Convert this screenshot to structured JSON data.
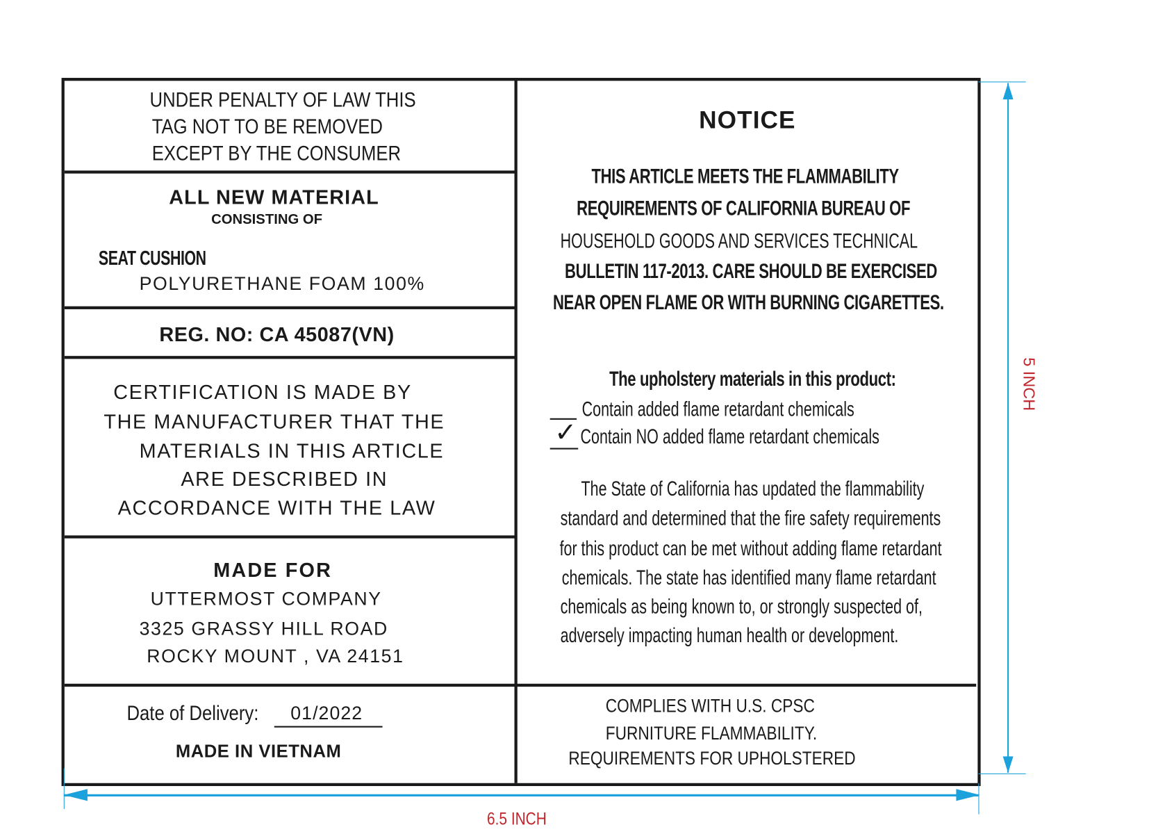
{
  "left": {
    "tag_notice": [
      "UNDER PENALTY OF LAW THIS",
      "TAG NOT TO BE REMOVED",
      "EXCEPT BY THE CONSUMER"
    ],
    "material_heading": "ALL NEW MATERIAL",
    "consisting_of": "CONSISTING OF",
    "component": "SEAT CUSHION",
    "component_material": "POLYURETHANE FOAM 100%",
    "reg_no": "REG. NO:  CA 45087(VN)",
    "certification": [
      "CERTIFICATION IS MADE BY",
      "THE MANUFACTURER THAT THE",
      "MATERIALS IN THIS ARTICLE",
      "ARE DESCRIBED IN",
      "ACCORDANCE WITH THE LAW"
    ],
    "made_for_heading": "MADE FOR",
    "made_for": [
      "UTTERMOST COMPANY",
      "3325 GRASSY HILL ROAD",
      "ROCKY MOUNT , VA 24151"
    ],
    "date_label": "Date of Delivery:",
    "date_value": "01/2022",
    "origin": "MADE IN VIETNAM"
  },
  "right": {
    "title": "NOTICE",
    "flammability": [
      "THIS ARTICLE MEETS THE FLAMMABILITY",
      "REQUIREMENTS OF CALIFORNIA BUREAU OF",
      "HOUSEHOLD GOODS AND SERVICES TECHNICAL",
      "BULLETIN 117-2013. CARE SHOULD BE EXERCISED",
      "NEAR OPEN FLAME OR WITH BURNING CIGARETTES."
    ],
    "upholstery_heading": "The upholstery materials in this product:",
    "options": [
      {
        "label": "Contain added flame retardant chemicals",
        "checked": false
      },
      {
        "label": "Contain NO added flame retardant chemicals",
        "checked": true
      }
    ],
    "state_paragraph": [
      "The State of California has updated the flammability",
      "standard and determined that the fire safety requirements",
      "for this product can be met without adding flame retardant",
      "chemicals. The state has identified many flame retardant",
      "chemicals as being known to, or strongly suspected of,",
      "adversely impacting human health or development."
    ],
    "cpsc": [
      "COMPLIES WITH U.S. CPSC",
      "FURNITURE  FLAMMABILITY.",
      "REQUIREMENTS FOR UPHOLSTERED"
    ]
  },
  "dimensions": {
    "width_label": "6.5 INCH",
    "height_label": "5 INCH",
    "dimension_color": "#1ba1dc",
    "label_color": "#c0272d"
  }
}
